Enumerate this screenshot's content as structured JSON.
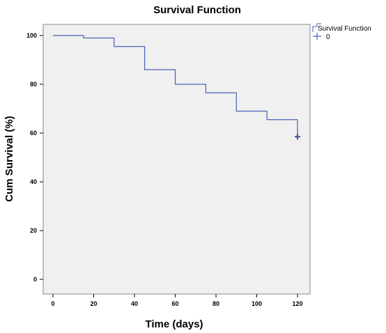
{
  "chart_data": {
    "type": "line",
    "title": "Survival Function",
    "xlabel": "Time (days)",
    "ylabel": "Cum Survival (%)",
    "xlim": [
      0,
      120
    ],
    "ylim": [
      0,
      100
    ],
    "x_ticks": [
      "0",
      "20",
      "40",
      "60",
      "80",
      "100",
      "120"
    ],
    "y_ticks": [
      "0",
      "20",
      "40",
      "60",
      "80",
      "100"
    ],
    "grid": false,
    "legend_position": "top-right",
    "plot_background": "#f0f0f0",
    "line_color": "#4a5fb5",
    "series": [
      {
        "name": "Survival Function",
        "step": true,
        "x": [
          0,
          15,
          15,
          30,
          30,
          45,
          45,
          60,
          60,
          75,
          75,
          90,
          90,
          105,
          105,
          120
        ],
        "y": [
          100,
          100,
          99,
          99,
          95.5,
          95.5,
          86,
          86,
          80,
          80,
          76.5,
          76.5,
          69,
          69,
          65.5,
          65.5
        ]
      },
      {
        "name": "0",
        "marker": "plus",
        "x": [
          120
        ],
        "y": [
          58.5
        ]
      }
    ],
    "drop_segment": {
      "x": 120,
      "y_from": 65.5,
      "y_to": 58.5
    }
  }
}
